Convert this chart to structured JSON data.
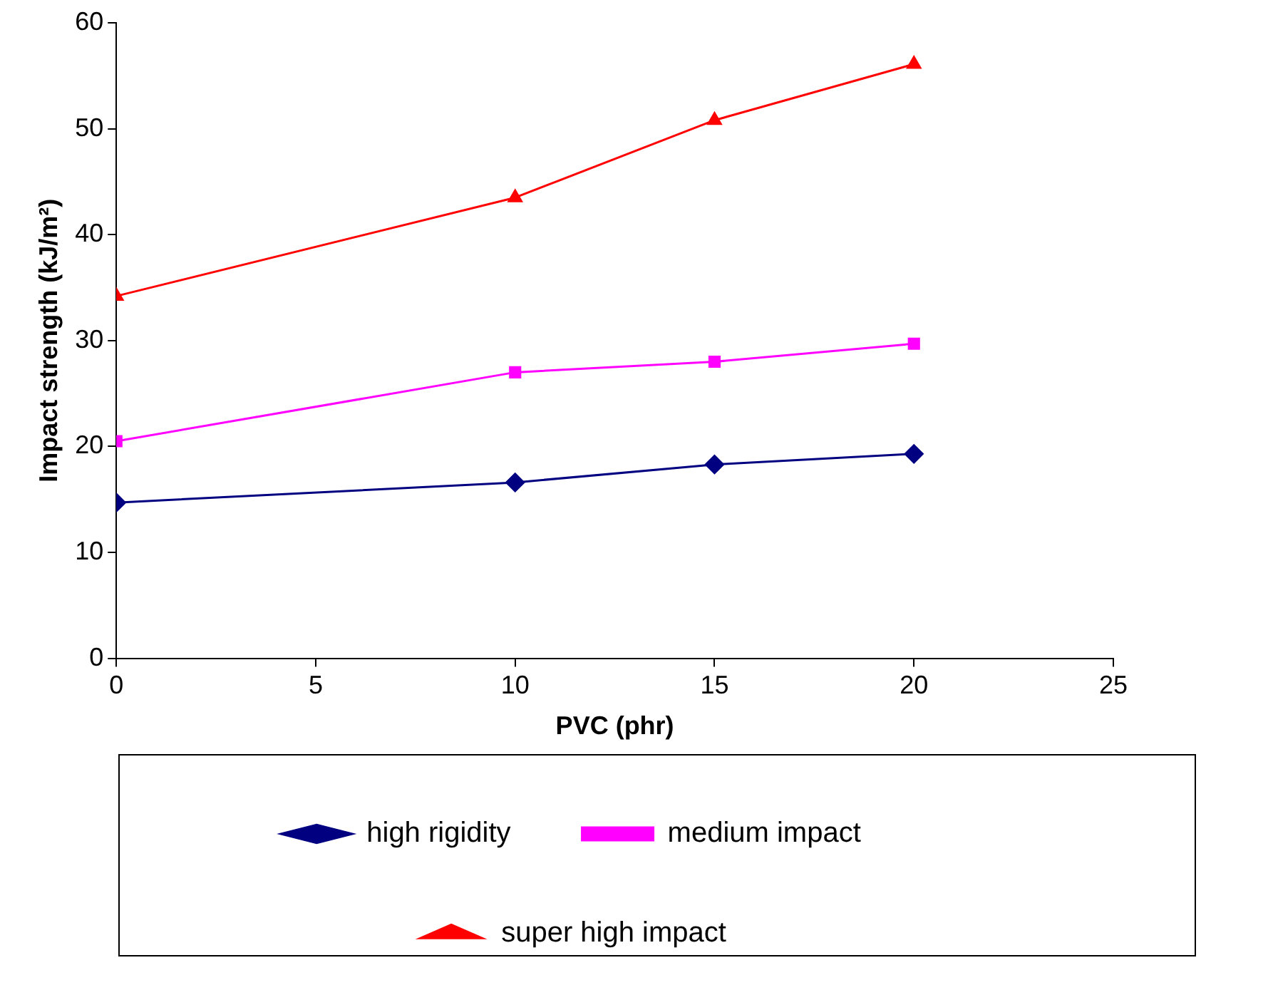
{
  "chart_data": {
    "type": "line",
    "xlabel": "PVC (phr)",
    "ylabel": "Impact strength (kJ/m²)",
    "xlim": [
      0,
      25
    ],
    "xticks": [
      0,
      5,
      10,
      15,
      20,
      25
    ],
    "ylim": [
      0,
      60
    ],
    "yticks": [
      0,
      10,
      20,
      30,
      40,
      50,
      60
    ],
    "grid": false,
    "legend": "bottom",
    "line_style": "solid",
    "x": [
      0,
      10,
      15,
      20
    ],
    "series": [
      {
        "name": "high rigidity",
        "color": "#000080",
        "marker": "diamond",
        "values": [
          14.7,
          16.6,
          18.3,
          19.3
        ]
      },
      {
        "name": "medium impact",
        "color": "#ff00ff",
        "marker": "square",
        "values": [
          20.5,
          27.0,
          28.0,
          29.7
        ]
      },
      {
        "name": "super high impact",
        "color": "#ff0000",
        "marker": "triangle",
        "values": [
          34.2,
          43.5,
          50.8,
          56.1
        ]
      }
    ]
  }
}
